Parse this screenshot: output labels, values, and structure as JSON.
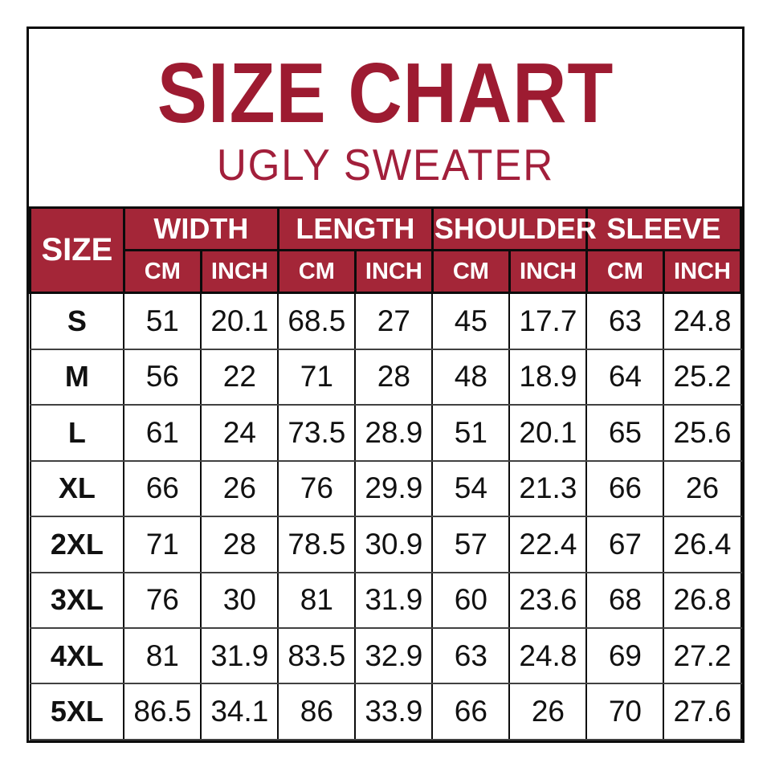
{
  "header": {
    "title": "SIZE CHART",
    "subtitle": "UGLY SWEATER"
  },
  "colors": {
    "title_red": "#9D1B31",
    "subtitle_red": "#A21F3B",
    "header_bg": "#A42638",
    "header_text": "#FFFFFF",
    "border_black": "#0B0B0B",
    "row_divider": "#414141",
    "body_text": "#111111",
    "background": "#FFFFFF"
  },
  "table": {
    "size_header": "SIZE",
    "groups": [
      {
        "label": "WIDTH"
      },
      {
        "label": "LENGTH"
      },
      {
        "label": "SHOULDER"
      },
      {
        "label": "SLEEVE"
      }
    ],
    "unit_headers": [
      "CM",
      "INCH"
    ],
    "rows": [
      {
        "size": "S",
        "values": [
          "51",
          "20.1",
          "68.5",
          "27",
          "45",
          "17.7",
          "63",
          "24.8"
        ]
      },
      {
        "size": "M",
        "values": [
          "56",
          "22",
          "71",
          "28",
          "48",
          "18.9",
          "64",
          "25.2"
        ]
      },
      {
        "size": "L",
        "values": [
          "61",
          "24",
          "73.5",
          "28.9",
          "51",
          "20.1",
          "65",
          "25.6"
        ]
      },
      {
        "size": "XL",
        "values": [
          "66",
          "26",
          "76",
          "29.9",
          "54",
          "21.3",
          "66",
          "26"
        ]
      },
      {
        "size": "2XL",
        "values": [
          "71",
          "28",
          "78.5",
          "30.9",
          "57",
          "22.4",
          "67",
          "26.4"
        ]
      },
      {
        "size": "3XL",
        "values": [
          "76",
          "30",
          "81",
          "31.9",
          "60",
          "23.6",
          "68",
          "26.8"
        ]
      },
      {
        "size": "4XL",
        "values": [
          "81",
          "31.9",
          "83.5",
          "32.9",
          "63",
          "24.8",
          "69",
          "27.2"
        ]
      },
      {
        "size": "5XL",
        "values": [
          "86.5",
          "34.1",
          "86",
          "33.9",
          "66",
          "26",
          "70",
          "27.6"
        ]
      }
    ]
  },
  "chart_data": {
    "type": "table",
    "title": "SIZE CHART",
    "subtitle": "UGLY SWEATER",
    "column_groups": [
      "WIDTH",
      "LENGTH",
      "SHOULDER",
      "SLEEVE"
    ],
    "units_per_group": [
      "CM",
      "INCH"
    ],
    "sizes": [
      "S",
      "M",
      "L",
      "XL",
      "2XL",
      "3XL",
      "4XL",
      "5XL"
    ],
    "measurements": {
      "width_cm": [
        51,
        56,
        61,
        66,
        71,
        76,
        81,
        86.5
      ],
      "width_inch": [
        20.1,
        22,
        24,
        26,
        28,
        30,
        31.9,
        34.1
      ],
      "length_cm": [
        68.5,
        71,
        73.5,
        76,
        78.5,
        81,
        83.5,
        86
      ],
      "length_inch": [
        27,
        28,
        28.9,
        29.9,
        30.9,
        31.9,
        32.9,
        33.9
      ],
      "shoulder_cm": [
        45,
        48,
        51,
        54,
        57,
        60,
        63,
        66
      ],
      "shoulder_inch": [
        17.7,
        18.9,
        20.1,
        21.3,
        22.4,
        23.6,
        24.8,
        26
      ],
      "sleeve_cm": [
        63,
        64,
        65,
        66,
        67,
        68,
        69,
        70
      ],
      "sleeve_inch": [
        24.8,
        25.2,
        25.6,
        26,
        26.4,
        26.8,
        27.2,
        27.6
      ]
    }
  }
}
